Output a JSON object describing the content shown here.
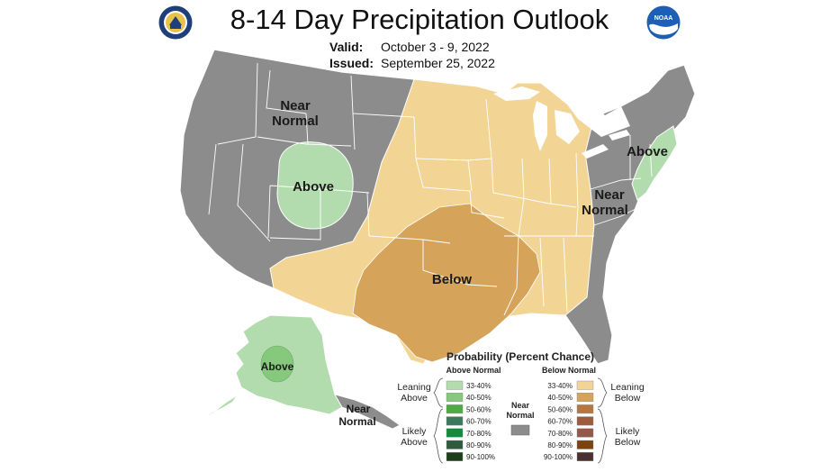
{
  "header": {
    "title": "8-14 Day Precipitation Outlook",
    "valid_label": "Valid:",
    "valid_value": "October 3 - 9, 2022",
    "issued_label": "Issued:",
    "issued_value": "September 25, 2022",
    "left_logo_icon": "doc-seal-icon",
    "right_logo_icon": "noaa-logo-icon",
    "noaa_text": "NOAA"
  },
  "map": {
    "labels": {
      "near_normal_west_1": "Near",
      "near_normal_west_2": "Normal",
      "above_west": "Above",
      "below_south": "Below",
      "above_northeast": "Above",
      "near_normal_east_1": "Near",
      "near_normal_east_2": "Normal",
      "above_alaska": "Above",
      "near_normal_alaska_1": "Near",
      "near_normal_alaska_2": "Normal"
    },
    "colors": {
      "near_normal": "#8c8c8c",
      "above_33_40": "#b3dcae",
      "below_33_40": "#f2d494",
      "below_40_50": "#d6a35a",
      "state_lines": "#ffffff"
    }
  },
  "legend": {
    "title": "Probability (Percent Chance)",
    "above_header": "Above Normal",
    "below_header": "Below Normal",
    "near_label_1": "Near",
    "near_label_2": "Normal",
    "near_color": "#8c8c8c",
    "leaning_above_1": "Leaning",
    "leaning_above_2": "Above",
    "likely_above_1": "Likely",
    "likely_above_2": "Above",
    "leaning_below_1": "Leaning",
    "leaning_below_2": "Below",
    "likely_below_1": "Likely",
    "likely_below_2": "Below",
    "above": [
      {
        "label": "33-40%",
        "color": "#b3dcae"
      },
      {
        "label": "40-50%",
        "color": "#86c97c"
      },
      {
        "label": "50-60%",
        "color": "#4dac44"
      },
      {
        "label": "60-70%",
        "color": "#3b7a5e"
      },
      {
        "label": "70-80%",
        "color": "#16893c"
      },
      {
        "label": "80-90%",
        "color": "#2f5a3b"
      },
      {
        "label": "90-100%",
        "color": "#1f3f1c"
      }
    ],
    "below": [
      {
        "label": "33-40%",
        "color": "#f2d494"
      },
      {
        "label": "40-50%",
        "color": "#d6a35a"
      },
      {
        "label": "50-60%",
        "color": "#b9763f"
      },
      {
        "label": "60-70%",
        "color": "#9f5c3d"
      },
      {
        "label": "70-80%",
        "color": "#935a4a"
      },
      {
        "label": "80-90%",
        "color": "#7a4310"
      },
      {
        "label": "90-100%",
        "color": "#4a3030"
      }
    ]
  }
}
